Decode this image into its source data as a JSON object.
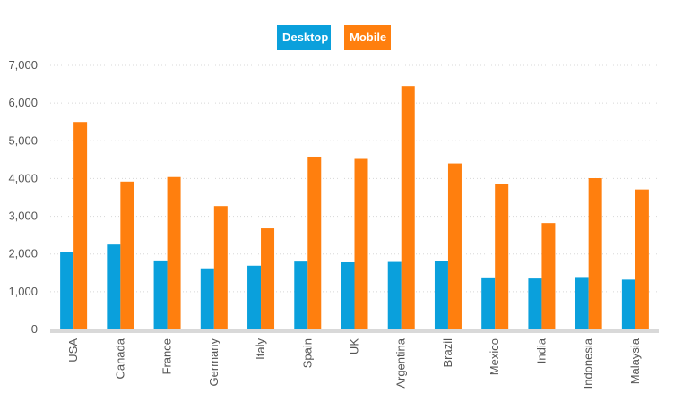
{
  "chart_data": {
    "type": "bar",
    "categories": [
      "USA",
      "Canada",
      "France",
      "Germany",
      "Italy",
      "Spain",
      "UK",
      "Argentina",
      "Brazil",
      "Mexico",
      "India",
      "Indonesia",
      "Malaysia"
    ],
    "series": [
      {
        "name": "Desktop",
        "color": "#0aa0dc",
        "values": [
          2050,
          2250,
          1830,
          1620,
          1690,
          1800,
          1780,
          1790,
          1820,
          1380,
          1350,
          1390,
          1320
        ]
      },
      {
        "name": "Mobile",
        "color": "#ff7f0e",
        "values": [
          5500,
          3920,
          4040,
          3270,
          2680,
          4580,
          4520,
          6450,
          4400,
          3860,
          2820,
          4010,
          3710
        ]
      }
    ],
    "yticks": [
      "0",
      "1,000",
      "2,000",
      "3,000",
      "4,000",
      "5,000",
      "6,000",
      "7,000"
    ],
    "ylim": [
      0,
      7000
    ],
    "title": "",
    "xlabel": "",
    "ylabel": "",
    "grid": true,
    "legend_position": "top-center"
  }
}
